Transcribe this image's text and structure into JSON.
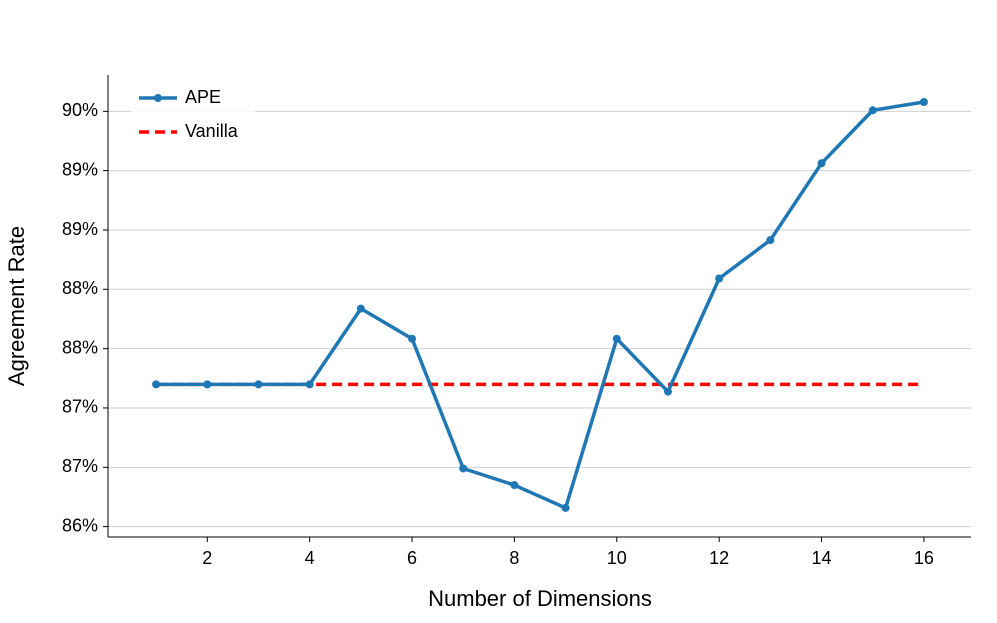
{
  "chart_data": {
    "type": "line",
    "x_label": "Number of Dimensions",
    "y_label": "Agreement Rate",
    "x": [
      1,
      2,
      3,
      4,
      5,
      6,
      7,
      8,
      9,
      10,
      11,
      12,
      13,
      14,
      15,
      16
    ],
    "series": [
      {
        "name": "APE",
        "color": "#1f77b4",
        "style": "solid",
        "markers": true,
        "values": [
          87.37,
          87.37,
          87.37,
          87.37,
          88.1,
          87.81,
          86.56,
          86.4,
          86.18,
          87.81,
          87.3,
          88.39,
          88.76,
          89.5,
          90.01,
          90.09
        ]
      },
      {
        "name": "Vanilla",
        "color": "#ff0000",
        "style": "dashed",
        "markers": false,
        "values": [
          87.37,
          87.37,
          87.37,
          87.37,
          87.37,
          87.37,
          87.37,
          87.37,
          87.37,
          87.37,
          87.37,
          87.37,
          87.37,
          87.37,
          87.37,
          87.37
        ]
      }
    ],
    "xlim": [
      0.06,
      16.92
    ],
    "ylim": [
      85.9,
      90.35
    ],
    "xticks": [
      2,
      4,
      6,
      8,
      10,
      12,
      14,
      16
    ],
    "yticks": [
      {
        "value": 86,
        "label": "86%"
      },
      {
        "value": 86.571,
        "label": "87%"
      },
      {
        "value": 87.143,
        "label": "87%"
      },
      {
        "value": 87.714,
        "label": "88%"
      },
      {
        "value": 88.286,
        "label": "88%"
      },
      {
        "value": 88.857,
        "label": "89%"
      },
      {
        "value": 89.429,
        "label": "89%"
      },
      {
        "value": 90,
        "label": "90%"
      }
    ],
    "grid": true,
    "legend": "upper-left"
  }
}
